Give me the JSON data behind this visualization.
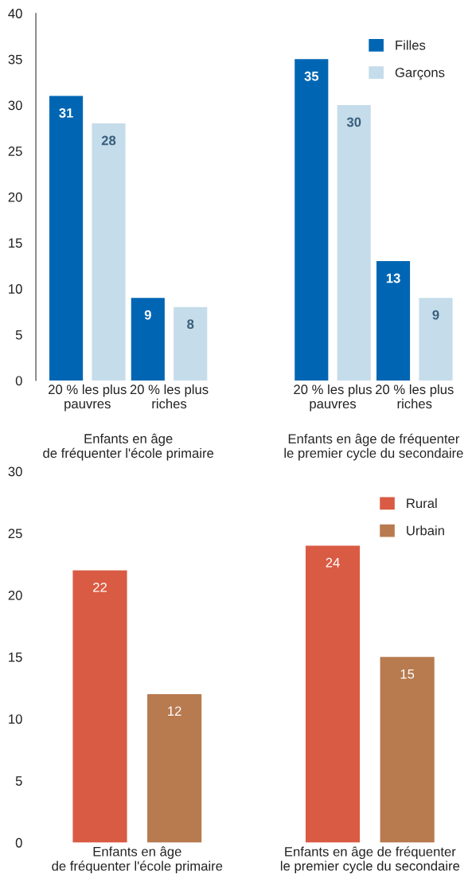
{
  "chart_data": [
    {
      "type": "bar",
      "categories": [
        "20 % les plus\npauvres",
        "20 % les plus\nriches",
        null,
        "20 % les plus\npauvres",
        "20 % les plus\nriches"
      ],
      "series": [
        {
          "name": "Filles",
          "color": "#0066b3",
          "values": [
            31,
            9,
            null,
            35,
            13
          ]
        },
        {
          "name": "Garçons",
          "color": "#c5dcea",
          "values": [
            28,
            8,
            null,
            30,
            9
          ]
        }
      ],
      "ylim": [
        0,
        40
      ],
      "yticks": [
        0,
        5,
        10,
        15,
        20,
        25,
        30,
        35,
        40
      ],
      "data_labels": true,
      "legend": "top right",
      "annotations": [
        "Enfants en âge\nde fréquenter l'école primaire",
        "Enfants en âge de fréquenter\nle premier cycle du secondaire"
      ]
    },
    {
      "type": "bar",
      "categories": [
        "Enfants en âge\nde fréquenter l'école primaire",
        "Enfants en âge de fréquenter\nle premier cycle du secondaire"
      ],
      "series": [
        {
          "name": "Rural",
          "color": "#d95b43",
          "values": [
            22,
            24
          ]
        },
        {
          "name": "Urbain",
          "color": "#b87a4f",
          "values": [
            12,
            15
          ]
        }
      ],
      "ylim": [
        0,
        30
      ],
      "yticks": [
        0,
        5,
        10,
        15,
        20,
        25,
        30
      ],
      "data_labels": true,
      "legend": "top right"
    }
  ]
}
